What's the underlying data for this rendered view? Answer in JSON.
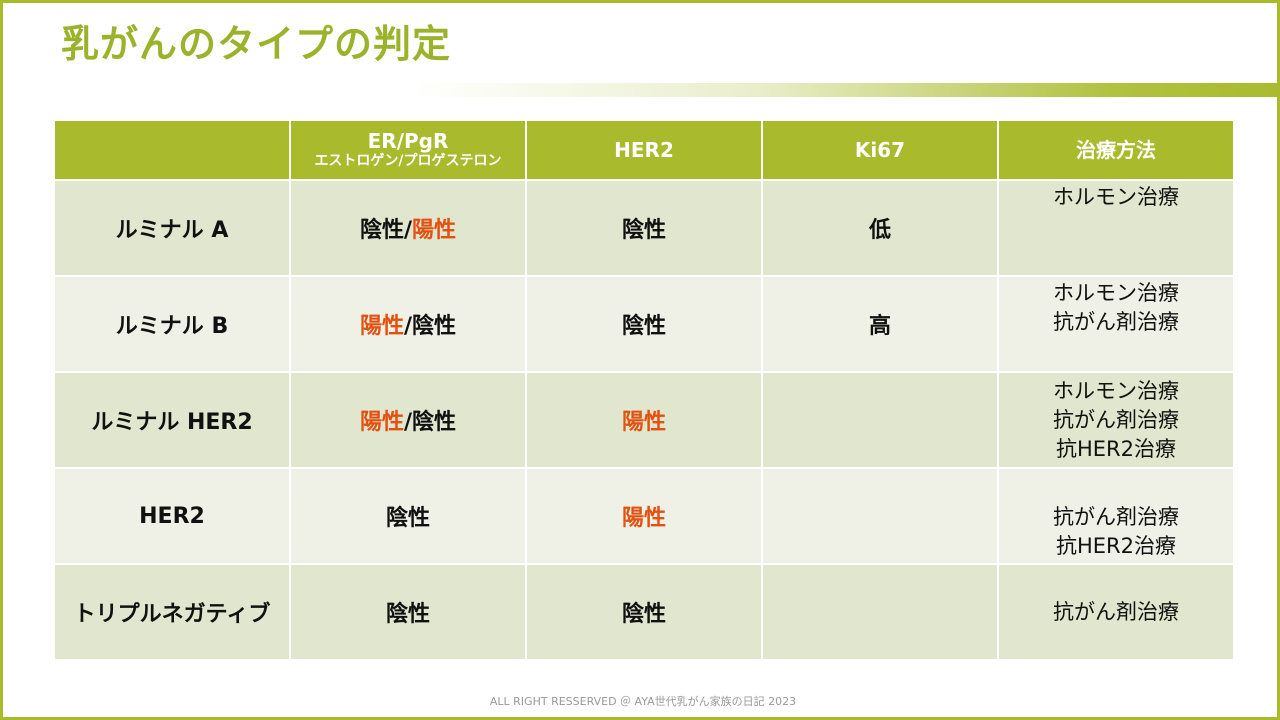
{
  "title": "乳がんのタイプの判定",
  "colors": {
    "accent": "#a9bb2d",
    "title": "#9bb32a",
    "positive": "#e3500f"
  },
  "table": {
    "headers": {
      "col0": "",
      "col1_main": "ER/PgR",
      "col1_sub": "エストロゲン/プロゲステロン",
      "col2": "HER2",
      "col3": "Ki67",
      "col4": "治療方法"
    },
    "rows": [
      {
        "type": "ルミナル A",
        "er_a": "陰性",
        "er_sep": "/",
        "er_b": "陽性",
        "her2": "陰性",
        "ki67": "低",
        "treatments": [
          "ホルモン治療"
        ]
      },
      {
        "type": "ルミナル B",
        "er_a": "陽性",
        "er_sep": "/",
        "er_b": "陰性",
        "her2": "陰性",
        "ki67": "高",
        "treatments": [
          "ホルモン治療",
          "抗がん剤治療"
        ]
      },
      {
        "type": "ルミナル HER2",
        "er_a": "陽性",
        "er_sep": "/",
        "er_b": "陰性",
        "her2": "陽性",
        "ki67": "",
        "treatments": [
          "ホルモン治療",
          "抗がん剤治療",
          "抗HER2治療"
        ]
      },
      {
        "type": "HER2",
        "er": "陰性",
        "her2": "陽性",
        "ki67": "",
        "treatments": [
          "抗がん剤治療",
          "抗HER2治療"
        ]
      },
      {
        "type": "トリプルネガティブ",
        "er": "陰性",
        "her2": "陰性",
        "ki67": "",
        "treatments": [
          "抗がん剤治療"
        ]
      }
    ]
  },
  "footer": "ALL RIGHT RESSERVED ＠ AYA世代乳がん家族の日記 2023"
}
